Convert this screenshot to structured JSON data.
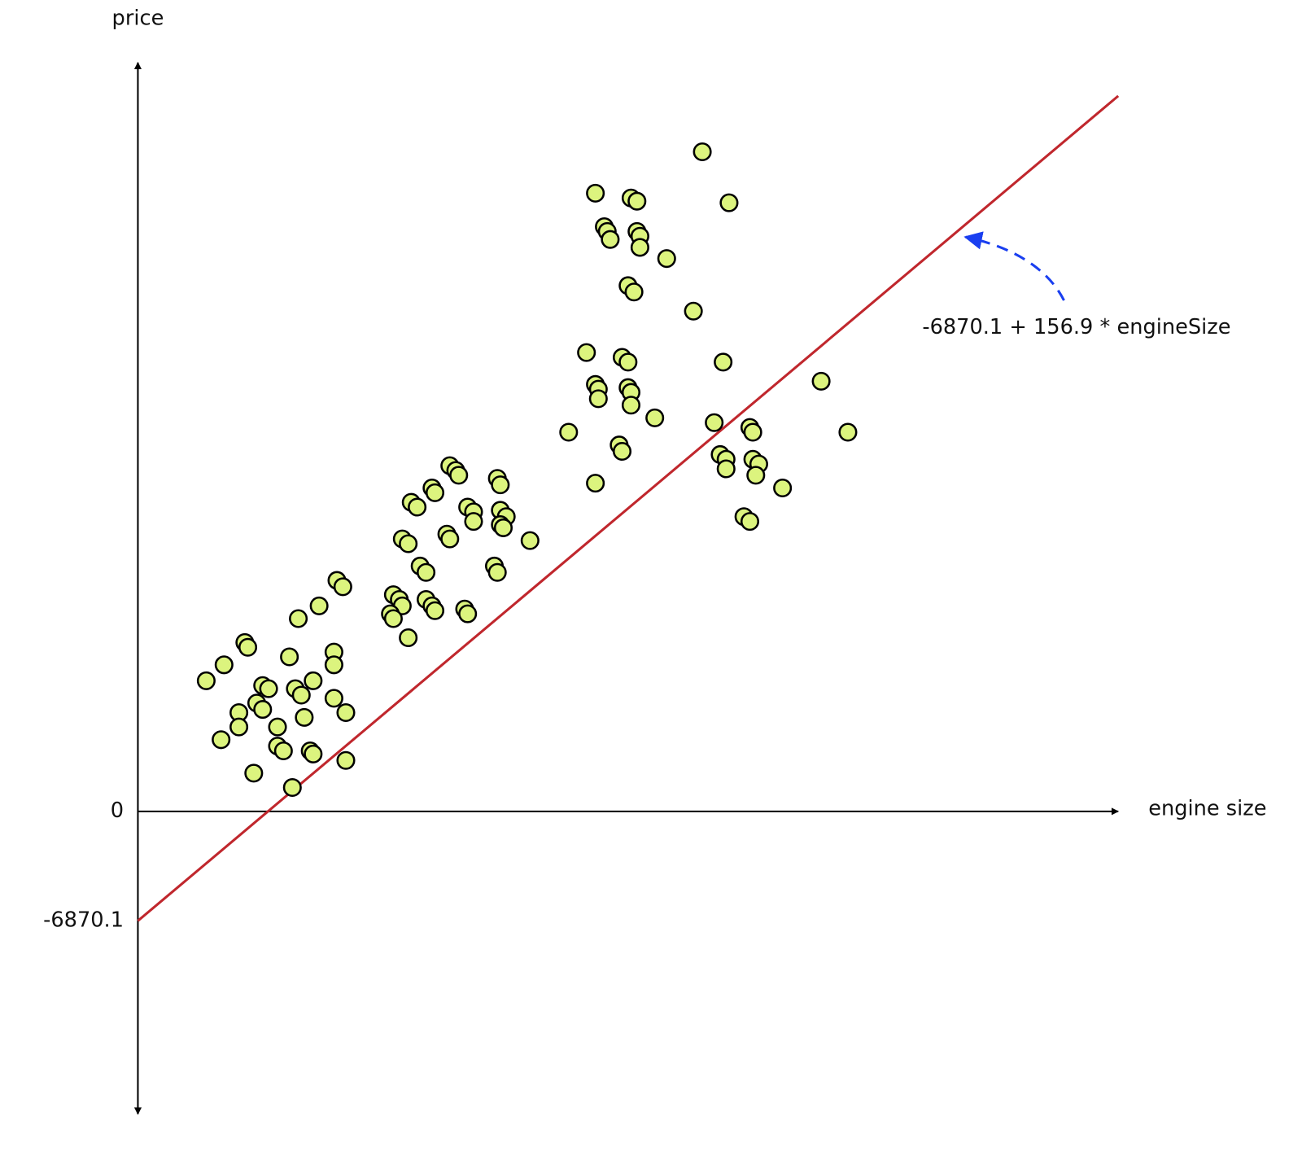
{
  "chart_data": {
    "type": "scatter",
    "x_label": "price",
    "y_axis_label": "price",
    "x_axis_label": "engine size",
    "annotation": "-6870.1 + 156.9 * engineSize",
    "xlim": [
      0,
      330
    ],
    "ylim": [
      -19000,
      47000
    ],
    "yticks": [
      -6870.1,
      0
    ],
    "point_color": "#dcf47e",
    "line_color": "#c0272d",
    "line": {
      "intercept": -6870.1,
      "slope": 156.9
    },
    "x": [
      190,
      154,
      166,
      168,
      199,
      157,
      158,
      159,
      168,
      169,
      169,
      178,
      165,
      167,
      187,
      151,
      163,
      165,
      197,
      154,
      155,
      155,
      165,
      166,
      166,
      230,
      174,
      194,
      145,
      206,
      207,
      239,
      162,
      163,
      196,
      198,
      198,
      207,
      209,
      208,
      154,
      217,
      204,
      206,
      105,
      107,
      108,
      121,
      122,
      99,
      100,
      92,
      94,
      111,
      113,
      113,
      122,
      124,
      122,
      123,
      104,
      105,
      89,
      91,
      132,
      95,
      97,
      120,
      121,
      67,
      69,
      86,
      88,
      89,
      97,
      99,
      100,
      61,
      110,
      111,
      85,
      86,
      54,
      91,
      36,
      37,
      66,
      66,
      51,
      29,
      23,
      59,
      42,
      44,
      53,
      55,
      66,
      40,
      42,
      34,
      70,
      56,
      34,
      47,
      28,
      47,
      49,
      58,
      59,
      70,
      39,
      52
    ],
    "values": [
      41400,
      38800,
      38500,
      38300,
      38200,
      36700,
      36400,
      35900,
      36400,
      36100,
      35400,
      34700,
      33000,
      32600,
      31400,
      28800,
      28500,
      28200,
      28200,
      26800,
      26500,
      25900,
      26600,
      26300,
      25500,
      27000,
      24700,
      24400,
      23800,
      24100,
      23800,
      23800,
      23000,
      22600,
      22400,
      22100,
      21500,
      22100,
      21800,
      21100,
      20600,
      20300,
      18500,
      18200,
      21700,
      21400,
      21100,
      20900,
      20500,
      20300,
      20000,
      19400,
      19100,
      19100,
      18800,
      18200,
      18900,
      18500,
      18000,
      17800,
      17400,
      17100,
      17100,
      16800,
      17000,
      15400,
      15000,
      15400,
      15000,
      14500,
      14100,
      13600,
      13300,
      12900,
      13300,
      12900,
      12600,
      12900,
      12700,
      12400,
      12400,
      12100,
      12100,
      10900,
      10600,
      10300,
      10000,
      9200,
      9700,
      9200,
      8200,
      8200,
      7900,
      7700,
      7700,
      7300,
      7100,
      6800,
      6400,
      6200,
      6200,
      5900,
      5300,
      5300,
      4500,
      4100,
      3800,
      3800,
      3600,
      3200,
      2400,
      1500
    ]
  }
}
